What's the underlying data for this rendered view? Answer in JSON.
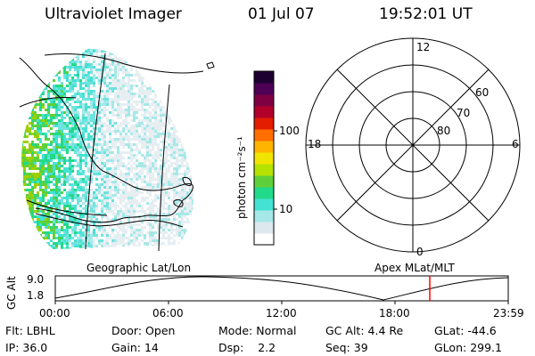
{
  "header": {
    "instrument": "Ultraviolet Imager",
    "date": "01 Jul 07",
    "time": "19:52:01 UT"
  },
  "colorbar": {
    "unit": "photon cm⁻²s⁻¹",
    "ticks": [
      {
        "label": "100",
        "value": 100
      },
      {
        "label": "10",
        "value": 10
      }
    ],
    "colors": [
      "#ffffff",
      "#dde8ee",
      "#a6e8e8",
      "#44e2d2",
      "#22d98a",
      "#5fd03a",
      "#b6e200",
      "#f0e500",
      "#ffb400",
      "#ff6e00",
      "#e41c00",
      "#b0002a",
      "#7e0042",
      "#4d0055",
      "#1e0030"
    ]
  },
  "geo_map": {
    "label": "Geographic Lat/Lon",
    "coast_color": "#000000"
  },
  "polar_plot": {
    "label": "Apex MLat/MLT",
    "mlt_labels": [
      {
        "label": "12",
        "pos": "top"
      },
      {
        "label": "6",
        "pos": "right"
      },
      {
        "label": "0",
        "pos": "bottom"
      },
      {
        "label": "18",
        "pos": "left"
      }
    ],
    "lat_labels": [
      "60",
      "70",
      "80"
    ]
  },
  "timeline": {
    "ylabel": "GC Alt",
    "ymax": "9.0",
    "ymin": "1.8",
    "xticks": [
      "00:00",
      "06:00",
      "12:00",
      "18:00",
      "23:59"
    ],
    "current_time_marker": "19:52",
    "marker_color": "#ff0000"
  },
  "info": {
    "row1": [
      {
        "key": "Flt:",
        "val": "LBHL"
      },
      {
        "key": "Door:",
        "val": "Open"
      },
      {
        "key": "Mode:",
        "val": "Normal"
      },
      {
        "key": "GC Alt:",
        "val": "4.4 Re"
      },
      {
        "key": "GLat:",
        "val": "-44.6"
      }
    ],
    "row2": [
      {
        "key": "IP:",
        "val": "36.0"
      },
      {
        "key": "Gain:",
        "val": "14"
      },
      {
        "key": "Dsp:",
        "val": "2.2"
      },
      {
        "key": "Seq:",
        "val": "39"
      },
      {
        "key": "GLon:",
        "val": "299.1"
      }
    ]
  }
}
